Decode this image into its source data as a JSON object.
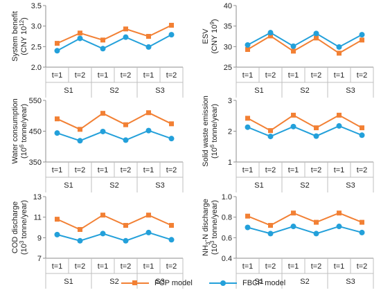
{
  "colors": {
    "fcp": "#F28034",
    "fbcp": "#23A0DA",
    "axis": "#8C8C8C",
    "grid": "#BFBFBF",
    "text": "#222222"
  },
  "legend": [
    {
      "key": "fcp",
      "label": "FCP model",
      "marker": "square"
    },
    {
      "key": "fbcp",
      "label": "FBCP model",
      "marker": "circle"
    }
  ],
  "chart_data": [
    {
      "type": "line",
      "ylabel_lines": [
        [
          "System benefit",
          ""
        ],
        [
          "(CNY 10",
          "12",
          ")"
        ]
      ],
      "ylim": [
        2.0,
        3.5
      ],
      "yticks": [
        2.0,
        2.5,
        3.0,
        3.5
      ],
      "ytick_labels": [
        "2.0",
        "2.5",
        "3.0",
        "3.5"
      ],
      "categories": [
        "t=1",
        "t=2",
        "t=1",
        "t=2",
        "t=1",
        "t=2"
      ],
      "groups": [
        "S1",
        "S2",
        "S3"
      ],
      "series": [
        {
          "name": "FCP model",
          "values": [
            2.58,
            2.83,
            2.66,
            2.93,
            2.75,
            3.02
          ]
        },
        {
          "name": "FBCP model",
          "values": [
            2.4,
            2.7,
            2.45,
            2.73,
            2.49,
            2.79
          ]
        }
      ]
    },
    {
      "type": "line",
      "ylabel_lines": [
        [
          "ESV",
          ""
        ],
        [
          "(CNY 10",
          "9",
          ")"
        ]
      ],
      "ylim": [
        25,
        40
      ],
      "yticks": [
        25,
        30,
        35,
        40
      ],
      "ytick_labels": [
        "25",
        "30",
        "35",
        "40"
      ],
      "categories": [
        "t=1",
        "t=2",
        "t=1",
        "t=2",
        "t=1",
        "t=2"
      ],
      "groups": [
        "S1",
        "S2",
        "S3"
      ],
      "series": [
        {
          "name": "FCP model",
          "values": [
            29.3,
            32.6,
            28.9,
            32.1,
            28.4,
            31.6
          ]
        },
        {
          "name": "FBCP model",
          "values": [
            30.4,
            33.4,
            30.1,
            33.2,
            29.9,
            32.9
          ]
        }
      ]
    },
    {
      "type": "line",
      "ylabel_lines": [
        [
          "Water consumption",
          ""
        ],
        [
          "(10",
          "6",
          " tonne/year)"
        ]
      ],
      "ylim": [
        350,
        550
      ],
      "yticks": [
        350,
        450,
        550
      ],
      "ytick_labels": [
        "350",
        "450",
        "550"
      ],
      "categories": [
        "t=1",
        "t=2",
        "t=1",
        "t=2",
        "t=1",
        "t=2"
      ],
      "groups": [
        "S1",
        "S2",
        "S3"
      ],
      "series": [
        {
          "name": "FCP model",
          "values": [
            490,
            456,
            508,
            471,
            510,
            474
          ]
        },
        {
          "name": "FBCP model",
          "values": [
            444,
            419,
            449,
            421,
            452,
            426
          ]
        }
      ]
    },
    {
      "type": "line",
      "ylabel_lines": [
        [
          "Solid waste emission",
          ""
        ],
        [
          "(10",
          "6",
          " tonne/year)"
        ]
      ],
      "ylim": [
        1,
        3
      ],
      "yticks": [
        1,
        2,
        3
      ],
      "ytick_labels": [
        "1",
        "2",
        "3"
      ],
      "categories": [
        "t=1",
        "t=2",
        "t=1",
        "t=2",
        "t=1",
        "t=2"
      ],
      "groups": [
        "S1",
        "S2",
        "S3"
      ],
      "series": [
        {
          "name": "FCP model",
          "values": [
            2.42,
            2.02,
            2.52,
            2.11,
            2.52,
            2.11
          ]
        },
        {
          "name": "FBCP model",
          "values": [
            2.13,
            1.83,
            2.15,
            1.84,
            2.17,
            1.87
          ]
        }
      ]
    },
    {
      "type": "line",
      "ylabel_lines": [
        [
          "COD discharge",
          ""
        ],
        [
          "(10",
          "3",
          " tonne/year)"
        ]
      ],
      "ylim": [
        7,
        13
      ],
      "yticks": [
        7,
        9,
        11,
        13
      ],
      "ytick_labels": [
        "7",
        "9",
        "11",
        "13"
      ],
      "categories": [
        "t=1",
        "t=2",
        "t=1",
        "t=2",
        "t=1",
        "t=2"
      ],
      "groups": [
        "S1",
        "S2",
        "S3"
      ],
      "series": [
        {
          "name": "FCP model",
          "values": [
            10.8,
            9.8,
            11.2,
            10.2,
            11.2,
            10.2
          ]
        },
        {
          "name": "FBCP model",
          "values": [
            9.3,
            8.7,
            9.4,
            8.7,
            9.5,
            8.8
          ]
        }
      ]
    },
    {
      "type": "line",
      "ylabel_lines": [
        [
          "NH",
          "3",
          "-N discharge"
        ],
        [
          "(10",
          "3",
          " tonne/year)"
        ]
      ],
      "ylim": [
        0.4,
        1.0
      ],
      "yticks": [
        0.4,
        0.6,
        0.8,
        1.0
      ],
      "ytick_labels": [
        "0.4",
        "0.6",
        "0.8",
        "1.0"
      ],
      "categories": [
        "t=1",
        "t=2",
        "t=1",
        "t=2",
        "t=1",
        "t=2"
      ],
      "groups": [
        "S1",
        "S2",
        "S3"
      ],
      "series": [
        {
          "name": "FCP model",
          "values": [
            0.81,
            0.72,
            0.84,
            0.75,
            0.84,
            0.75
          ]
        },
        {
          "name": "FBCP model",
          "values": [
            0.7,
            0.64,
            0.71,
            0.64,
            0.71,
            0.65
          ]
        }
      ]
    }
  ]
}
